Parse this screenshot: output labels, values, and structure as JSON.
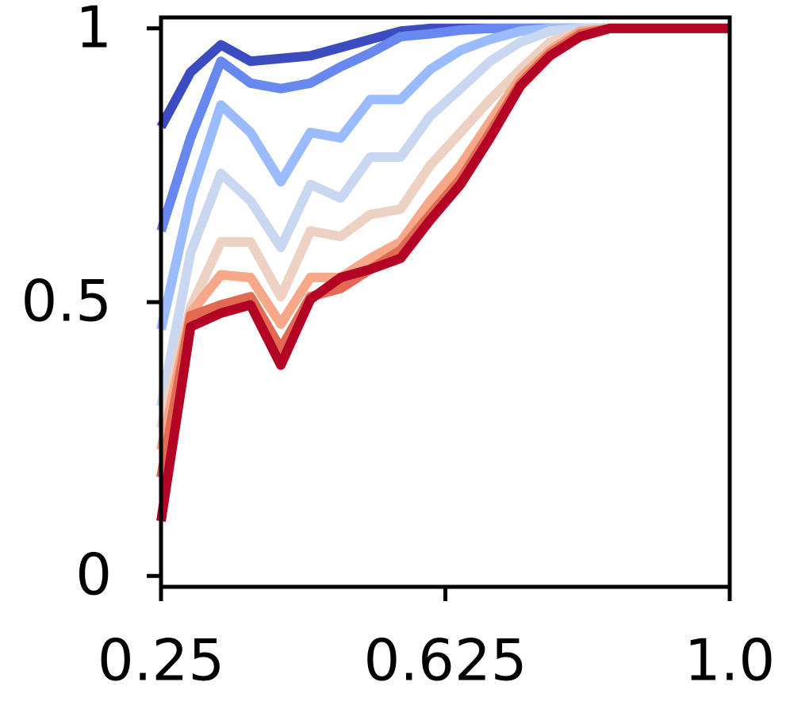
{
  "chart_data": {
    "type": "line",
    "x": [
      0.25,
      0.289,
      0.329,
      0.368,
      0.408,
      0.447,
      0.487,
      0.526,
      0.566,
      0.605,
      0.645,
      0.684,
      0.724,
      0.763,
      0.803,
      0.842,
      0.882,
      0.921,
      0.961,
      1.0
    ],
    "series": [
      {
        "color": "#3b4cc0",
        "values": [
          0.82,
          0.92,
          0.97,
          0.94,
          0.945,
          0.95,
          0.965,
          0.98,
          0.995,
          1,
          1,
          1,
          1,
          1,
          1,
          1,
          1,
          1,
          1,
          1
        ]
      },
      {
        "color": "#6788ee",
        "values": [
          0.63,
          0.8,
          0.94,
          0.9,
          0.89,
          0.9,
          0.93,
          0.955,
          0.985,
          0.99,
          0.997,
          1,
          1,
          1,
          1,
          1,
          1,
          1,
          1,
          1
        ]
      },
      {
        "color": "#9abbff",
        "values": [
          0.45,
          0.69,
          0.86,
          0.81,
          0.72,
          0.81,
          0.8,
          0.87,
          0.87,
          0.925,
          0.96,
          0.98,
          0.995,
          1,
          1,
          1,
          1,
          1,
          1,
          1
        ]
      },
      {
        "color": "#c9d7f0",
        "values": [
          0.31,
          0.59,
          0.735,
          0.685,
          0.6,
          0.715,
          0.69,
          0.765,
          0.765,
          0.84,
          0.89,
          0.94,
          0.975,
          0.995,
          1,
          1,
          1,
          1,
          1,
          1
        ]
      },
      {
        "color": "#edd1c2",
        "values": [
          0.27,
          0.49,
          0.61,
          0.61,
          0.51,
          0.63,
          0.62,
          0.66,
          0.67,
          0.75,
          0.81,
          0.87,
          0.925,
          0.975,
          0.995,
          1,
          1,
          1,
          1,
          1
        ]
      },
      {
        "color": "#f7a889",
        "values": [
          0.23,
          0.48,
          0.55,
          0.545,
          0.46,
          0.545,
          0.545,
          0.58,
          0.61,
          0.685,
          0.75,
          0.83,
          0.91,
          0.96,
          0.995,
          1,
          1,
          1,
          1,
          1
        ]
      },
      {
        "color": "#e26952",
        "values": [
          0.18,
          0.475,
          0.495,
          0.51,
          0.415,
          0.51,
          0.525,
          0.56,
          0.595,
          0.66,
          0.725,
          0.81,
          0.9,
          0.955,
          0.99,
          1,
          1,
          1,
          1,
          1
        ]
      },
      {
        "color": "#b40426",
        "values": [
          0.1,
          0.455,
          0.48,
          0.495,
          0.385,
          0.505,
          0.545,
          0.56,
          0.58,
          0.65,
          0.715,
          0.8,
          0.895,
          0.95,
          0.985,
          1,
          1,
          1,
          1,
          1
        ]
      }
    ],
    "xlim": [
      0.25,
      1.0
    ],
    "ylim": [
      -0.02,
      1.02
    ],
    "xticks": [
      0.25,
      0.625,
      {
        "value": 1,
        "label": "1.0"
      }
    ],
    "yticks": [
      0,
      0.5,
      1
    ]
  }
}
